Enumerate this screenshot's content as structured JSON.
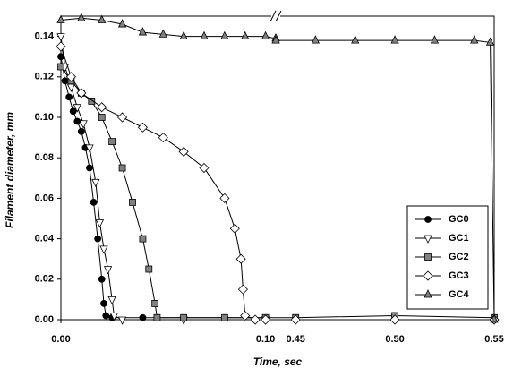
{
  "chart_data": {
    "type": "line",
    "x_label": "Time, sec",
    "y_label": "Filament diameter, mm",
    "xlim": [
      0,
      0.55
    ],
    "x_break": [
      0.105,
      0.44
    ],
    "xticks": [
      {
        "value": 0,
        "label": "0.00"
      },
      {
        "value": 0.1,
        "label": "0.10"
      },
      {
        "value": 0.45,
        "label": "0.45"
      },
      {
        "value": 0.5,
        "label": "0.50"
      },
      {
        "value": 0.55,
        "label": "0.55"
      }
    ],
    "ylim": [
      0,
      0.15
    ],
    "yticks": [
      {
        "value": 0,
        "label": "0.00"
      },
      {
        "value": 0.02,
        "label": "0.02"
      },
      {
        "value": 0.04,
        "label": "0.04"
      },
      {
        "value": 0.06,
        "label": "0.06"
      },
      {
        "value": 0.08,
        "label": "0.08"
      },
      {
        "value": 0.1,
        "label": "0.10"
      },
      {
        "value": 0.12,
        "label": "0.12"
      },
      {
        "value": 0.14,
        "label": "0.14"
      }
    ],
    "legend": "lower right",
    "line_color": "#000000",
    "series": [
      {
        "name": "GC0",
        "marker": "circle",
        "color": "#000000",
        "x": [
          0,
          0.002,
          0.004,
          0.006,
          0.008,
          0.01,
          0.012,
          0.014,
          0.016,
          0.018,
          0.02,
          0.021,
          0.022,
          0.025,
          0.04,
          0.06,
          0.08,
          0.1
        ],
        "values": [
          0.13,
          0.118,
          0.11,
          0.103,
          0.098,
          0.093,
          0.085,
          0.075,
          0.058,
          0.04,
          0.02,
          0.008,
          0.002,
          0.001,
          0.001,
          0.001,
          0.001,
          0.001
        ]
      },
      {
        "name": "GC1",
        "marker": "triangle-down",
        "color": "#ffffff",
        "x": [
          0,
          0.002,
          0.005,
          0.008,
          0.011,
          0.014,
          0.017,
          0.019,
          0.021,
          0.023,
          0.025,
          0.026,
          0.03,
          0.06,
          0.1
        ],
        "values": [
          0.14,
          0.125,
          0.115,
          0.105,
          0.097,
          0.085,
          0.068,
          0.048,
          0.035,
          0.025,
          0.01,
          0.002,
          0,
          0,
          0
        ]
      },
      {
        "name": "GC2",
        "marker": "square",
        "color": "#808080",
        "x": [
          0,
          0.005,
          0.01,
          0.015,
          0.02,
          0.025,
          0.03,
          0.035,
          0.04,
          0.043,
          0.046,
          0.047,
          0.06,
          0.08,
          0.1,
          0.45,
          0.5,
          0.55
        ],
        "values": [
          0.125,
          0.118,
          0.112,
          0.108,
          0.1,
          0.088,
          0.075,
          0.058,
          0.04,
          0.025,
          0.008,
          0.001,
          0.001,
          0.001,
          0.001,
          0.001,
          0.002,
          0.001
        ]
      },
      {
        "name": "GC3",
        "marker": "diamond",
        "color": "#ffffff",
        "x": [
          0,
          0.005,
          0.01,
          0.02,
          0.03,
          0.04,
          0.05,
          0.06,
          0.07,
          0.08,
          0.085,
          0.088,
          0.089,
          0.09,
          0.095,
          0.1,
          0.45,
          0.5,
          0.55
        ],
        "values": [
          0.135,
          0.12,
          0.112,
          0.105,
          0.1,
          0.095,
          0.09,
          0.083,
          0.075,
          0.06,
          0.045,
          0.03,
          0.015,
          0.002,
          0,
          0,
          0,
          0,
          0
        ]
      },
      {
        "name": "GC4",
        "marker": "triangle-up",
        "color": "#808080",
        "x": [
          0,
          0.01,
          0.02,
          0.03,
          0.04,
          0.05,
          0.06,
          0.07,
          0.08,
          0.09,
          0.1,
          0.105,
          0.44,
          0.46,
          0.48,
          0.5,
          0.52,
          0.54,
          0.548,
          0.55
        ],
        "values": [
          0.148,
          0.149,
          0.148,
          0.146,
          0.142,
          0.141,
          0.14,
          0.14,
          0.14,
          0.14,
          0.14,
          0.139,
          0.138,
          0.138,
          0.138,
          0.138,
          0.138,
          0.138,
          0.137,
          0
        ]
      }
    ]
  }
}
